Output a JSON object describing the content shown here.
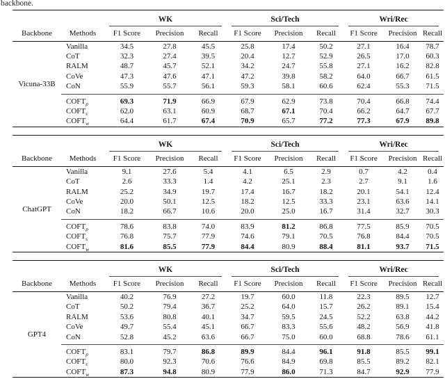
{
  "page": {
    "caption_fragment": "backbone."
  },
  "columns": {
    "left_headers": [
      "Backbone",
      "Methods"
    ],
    "group_headers": [
      "WK",
      "Sci/Tech",
      "Wri/Rec"
    ],
    "sub_headers": [
      "F1 Score",
      "Precision",
      "Recall"
    ]
  },
  "tables": [
    {
      "backbone": "Vicuna-33B",
      "rows": [
        {
          "method": "Vanilla",
          "sub": "",
          "values": [
            "34.5",
            "27.8",
            "45.5",
            "25.8",
            "17.4",
            "50.2",
            "27.1",
            "16.4",
            "78.7"
          ],
          "bold": [
            0,
            0,
            0,
            0,
            0,
            0,
            0,
            0,
            0
          ]
        },
        {
          "method": "CoT",
          "sub": "",
          "values": [
            "32.3",
            "27.4",
            "39.5",
            "20.4",
            "12.7",
            "52.9",
            "26.5",
            "17.0",
            "60.3"
          ],
          "bold": [
            0,
            0,
            0,
            0,
            0,
            0,
            0,
            0,
            0
          ]
        },
        {
          "method": "RALM",
          "sub": "",
          "values": [
            "48.7",
            "45.7",
            "52.1",
            "34.2",
            "24.7",
            "55.8",
            "27.1",
            "16.2",
            "82.8"
          ],
          "bold": [
            0,
            0,
            0,
            0,
            0,
            0,
            0,
            0,
            0
          ]
        },
        {
          "method": "CoVe",
          "sub": "",
          "values": [
            "47.3",
            "47.6",
            "47.1",
            "47.2",
            "39.8",
            "58.2",
            "64.0",
            "66.7",
            "61.5"
          ],
          "bold": [
            0,
            0,
            0,
            0,
            0,
            0,
            0,
            0,
            0
          ]
        },
        {
          "method": "CoN",
          "sub": "",
          "values": [
            "55.9",
            "55.7",
            "56.1",
            "59.3",
            "58.1",
            "60.6",
            "62.4",
            "55.3",
            "71.5"
          ],
          "bold": [
            0,
            0,
            0,
            0,
            0,
            0,
            0,
            0,
            0
          ]
        }
      ],
      "coft_rows": [
        {
          "method": "COFT",
          "sub": "p",
          "values": [
            "69.3",
            "71.9",
            "66.9",
            "67.9",
            "62.9",
            "73.8",
            "70.4",
            "66.8",
            "74.4"
          ],
          "bold": [
            1,
            1,
            0,
            0,
            0,
            0,
            0,
            0,
            0
          ]
        },
        {
          "method": "COFT",
          "sub": "s",
          "values": [
            "62.0",
            "63.1",
            "60.9",
            "68.7",
            "67.1",
            "70.4",
            "66.2",
            "64.7",
            "67.7"
          ],
          "bold": [
            0,
            0,
            0,
            0,
            1,
            0,
            0,
            0,
            0
          ]
        },
        {
          "method": "COFT",
          "sub": "w",
          "values": [
            "64.4",
            "61.7",
            "67.4",
            "70.9",
            "65.7",
            "77.2",
            "77.3",
            "67.9",
            "89.8"
          ],
          "bold": [
            0,
            0,
            1,
            1,
            0,
            1,
            1,
            1,
            1
          ]
        }
      ]
    },
    {
      "backbone": "ChatGPT",
      "rows": [
        {
          "method": "Vanilla",
          "sub": "",
          "values": [
            "9.1",
            "27.6",
            "5.4",
            "4.1",
            "6.5",
            "2.9",
            "0.7",
            "4.2",
            "0.4"
          ],
          "bold": [
            0,
            0,
            0,
            0,
            0,
            0,
            0,
            0,
            0
          ]
        },
        {
          "method": "CoT",
          "sub": "",
          "values": [
            "2.6",
            "33.3",
            "1.4",
            "4.2",
            "25.1",
            "2.3",
            "2.7",
            "9.1",
            "1.6"
          ],
          "bold": [
            0,
            0,
            0,
            0,
            0,
            0,
            0,
            0,
            0
          ]
        },
        {
          "method": "RALM",
          "sub": "",
          "values": [
            "25.2",
            "34.9",
            "19.7",
            "17.4",
            "16.7",
            "18.2",
            "20.1",
            "54.1",
            "12.4"
          ],
          "bold": [
            0,
            0,
            0,
            0,
            0,
            0,
            0,
            0,
            0
          ]
        },
        {
          "method": "CoVe",
          "sub": "",
          "values": [
            "20.0",
            "50.1",
            "12.5",
            "18.2",
            "12.5",
            "33.3",
            "23.1",
            "63.6",
            "14.1"
          ],
          "bold": [
            0,
            0,
            0,
            0,
            0,
            0,
            0,
            0,
            0
          ]
        },
        {
          "method": "CoN",
          "sub": "",
          "values": [
            "18.2",
            "66.7",
            "10.6",
            "20.0",
            "25.0",
            "16.7",
            "31.4",
            "32.7",
            "30.3"
          ],
          "bold": [
            0,
            0,
            0,
            0,
            0,
            0,
            0,
            0,
            0
          ]
        }
      ],
      "coft_rows": [
        {
          "method": "COFT",
          "sub": "p",
          "values": [
            "78.6",
            "83.8",
            "74.0",
            "83.9",
            "81.2",
            "86.8",
            "77.5",
            "85.9",
            "70.5"
          ],
          "bold": [
            0,
            0,
            0,
            0,
            1,
            0,
            0,
            0,
            0
          ]
        },
        {
          "method": "COFT",
          "sub": "s",
          "values": [
            "76.8",
            "75.7",
            "77.9",
            "74.6",
            "79.1",
            "70.5",
            "76.8",
            "84.4",
            "70.5"
          ],
          "bold": [
            0,
            0,
            0,
            0,
            0,
            0,
            0,
            0,
            0
          ]
        },
        {
          "method": "COFT",
          "sub": "w",
          "values": [
            "81.6",
            "85.5",
            "77.9",
            "84.4",
            "80.9",
            "88.4",
            "81.1",
            "93.7",
            "71.5"
          ],
          "bold": [
            1,
            1,
            1,
            1,
            0,
            1,
            1,
            1,
            1
          ]
        }
      ]
    },
    {
      "backbone": "GPT4",
      "rows": [
        {
          "method": "Vanilla",
          "sub": "",
          "values": [
            "40.2",
            "76.9",
            "27.2",
            "19.7",
            "60.0",
            "11.8",
            "22.3",
            "89.5",
            "12.7"
          ],
          "bold": [
            0,
            0,
            0,
            0,
            0,
            0,
            0,
            0,
            0
          ]
        },
        {
          "method": "CoT",
          "sub": "",
          "values": [
            "50.2",
            "79.4",
            "36.7",
            "25.2",
            "64.0",
            "15.7",
            "26.2",
            "89.1",
            "15.4"
          ],
          "bold": [
            0,
            0,
            0,
            0,
            0,
            0,
            0,
            0,
            0
          ]
        },
        {
          "method": "RALM",
          "sub": "",
          "values": [
            "53.6",
            "80.8",
            "40.1",
            "34.7",
            "59.5",
            "24.5",
            "52.2",
            "63.8",
            "44.2"
          ],
          "bold": [
            0,
            0,
            0,
            0,
            0,
            0,
            0,
            0,
            0
          ]
        },
        {
          "method": "CoVe",
          "sub": "",
          "values": [
            "49.7",
            "55.4",
            "45.1",
            "66.7",
            "83.3",
            "55.6",
            "48.2",
            "56.9",
            "41.8"
          ],
          "bold": [
            0,
            0,
            0,
            0,
            0,
            0,
            0,
            0,
            0
          ]
        },
        {
          "method": "CoN",
          "sub": "",
          "values": [
            "52.8",
            "45.2",
            "63.6",
            "66.7",
            "75.0",
            "60.0",
            "68.8",
            "78.6",
            "61.1"
          ],
          "bold": [
            0,
            0,
            0,
            0,
            0,
            0,
            0,
            0,
            0
          ]
        }
      ],
      "coft_rows": [
        {
          "method": "COFT",
          "sub": "p",
          "values": [
            "83.1",
            "79.7",
            "86.8",
            "89.9",
            "84.4",
            "96.1",
            "91.8",
            "85.5",
            "99.1"
          ],
          "bold": [
            0,
            0,
            1,
            1,
            0,
            1,
            1,
            0,
            1
          ]
        },
        {
          "method": "COFT",
          "sub": "s",
          "values": [
            "80.0",
            "92.3",
            "70.6",
            "76.6",
            "84.9",
            "69.8",
            "85.5",
            "89.2",
            "82.1"
          ],
          "bold": [
            0,
            0,
            0,
            0,
            0,
            0,
            0,
            0,
            0
          ]
        },
        {
          "method": "COFT",
          "sub": "w",
          "values": [
            "87.3",
            "94.8",
            "80.9",
            "77.9",
            "86.0",
            "71.3",
            "84.7",
            "92.9",
            "77.9"
          ],
          "bold": [
            1,
            1,
            0,
            0,
            1,
            0,
            0,
            1,
            0
          ]
        }
      ]
    }
  ]
}
